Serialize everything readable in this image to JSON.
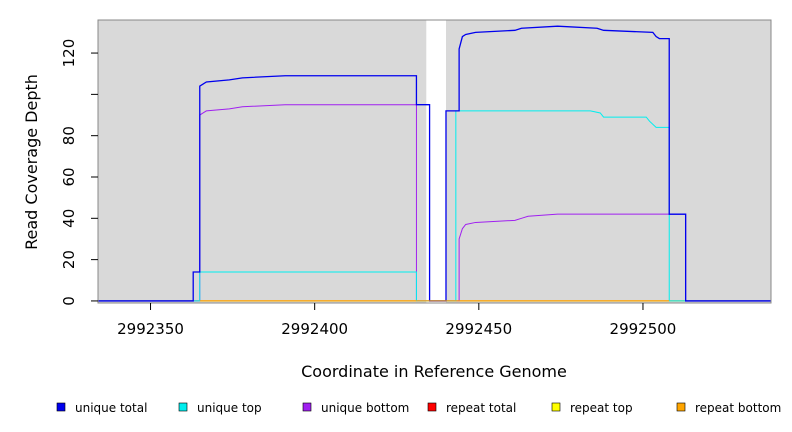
{
  "chart_data": {
    "type": "line",
    "step": true,
    "xlabel": "Coordinate in Reference Genome",
    "ylabel": "Read Coverage Depth",
    "xlim": [
      2992334,
      2992539
    ],
    "ylim": [
      -1,
      136
    ],
    "x_ticks": [
      2992350,
      2992400,
      2992450,
      2992500
    ],
    "y_ticks": [
      0,
      20,
      40,
      60,
      80,
      100,
      120
    ],
    "y_tick_labels": [
      "0",
      "20",
      "40",
      "60",
      "80",
      "",
      "120"
    ],
    "grid": false,
    "background_color": "#d9d9d9",
    "unshaded_regions": [
      [
        2992434.0,
        2992440.0
      ]
    ],
    "legend_position": "bottom",
    "series": [
      {
        "name": "unique total",
        "color": "#0000ee",
        "points": [
          [
            2992334,
            0
          ],
          [
            2992363,
            0
          ],
          [
            2992363,
            14
          ],
          [
            2992365,
            14
          ],
          [
            2992365,
            104
          ],
          [
            2992366,
            105
          ],
          [
            2992367,
            106
          ],
          [
            2992374,
            107
          ],
          [
            2992378,
            108
          ],
          [
            2992391,
            109
          ],
          [
            2992431,
            109
          ],
          [
            2992431,
            95
          ],
          [
            2992435,
            95
          ],
          [
            2992435,
            0
          ],
          [
            2992440,
            0
          ],
          [
            2992440,
            92
          ],
          [
            2992444,
            92
          ],
          [
            2992444,
            122
          ],
          [
            2992445,
            128
          ],
          [
            2992446,
            129
          ],
          [
            2992449,
            130
          ],
          [
            2992461,
            131
          ],
          [
            2992463,
            132
          ],
          [
            2992474,
            133
          ],
          [
            2992486,
            132
          ],
          [
            2992488,
            131
          ],
          [
            2992503,
            130
          ],
          [
            2992504,
            128
          ],
          [
            2992505,
            127
          ],
          [
            2992508,
            127
          ],
          [
            2992508,
            42
          ],
          [
            2992513,
            42
          ],
          [
            2992513,
            0
          ],
          [
            2992539,
            0
          ]
        ]
      },
      {
        "name": "unique top",
        "color": "#00eeee",
        "points": [
          [
            2992334,
            0
          ],
          [
            2992365,
            0
          ],
          [
            2992365,
            14
          ],
          [
            2992431,
            14
          ],
          [
            2992431,
            0
          ],
          [
            2992443,
            0
          ],
          [
            2992443,
            92
          ],
          [
            2992484,
            92
          ],
          [
            2992487,
            91
          ],
          [
            2992488,
            89
          ],
          [
            2992501,
            89
          ],
          [
            2992502,
            87
          ],
          [
            2992504,
            84
          ],
          [
            2992508,
            84
          ],
          [
            2992508,
            0
          ],
          [
            2992539,
            0
          ]
        ]
      },
      {
        "name": "unique bottom",
        "color": "#a020f0",
        "points": [
          [
            2992334,
            0
          ],
          [
            2992365,
            0
          ],
          [
            2992365,
            90
          ],
          [
            2992366,
            91
          ],
          [
            2992367,
            92
          ],
          [
            2992374,
            93
          ],
          [
            2992378,
            94
          ],
          [
            2992391,
            95
          ],
          [
            2992431,
            95
          ],
          [
            2992431,
            0
          ],
          [
            2992444,
            0
          ],
          [
            2992444,
            30
          ],
          [
            2992445,
            35
          ],
          [
            2992446,
            37
          ],
          [
            2992449,
            38
          ],
          [
            2992461,
            39
          ],
          [
            2992463,
            40
          ],
          [
            2992465,
            41
          ],
          [
            2992474,
            42
          ],
          [
            2992513,
            42
          ],
          [
            2992513,
            0
          ],
          [
            2992539,
            0
          ]
        ]
      },
      {
        "name": "repeat total",
        "color": "#ff0000",
        "points": [
          [
            2992334,
            0
          ],
          [
            2992539,
            0
          ]
        ]
      },
      {
        "name": "repeat top",
        "color": "#ffff00",
        "points": [
          [
            2992334,
            0
          ],
          [
            2992539,
            0
          ]
        ]
      },
      {
        "name": "repeat bottom",
        "color": "#ffa500",
        "points": [
          [
            2992365,
            0
          ],
          [
            2992431,
            0
          ],
          [
            2992444,
            0
          ],
          [
            2992508,
            0
          ]
        ]
      }
    ]
  }
}
